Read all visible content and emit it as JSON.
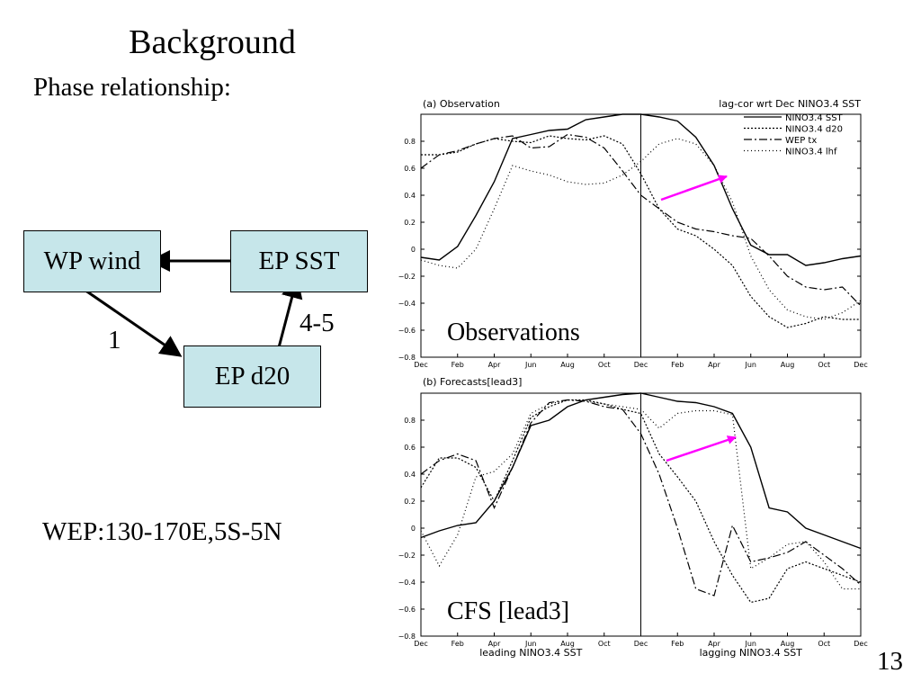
{
  "slide": {
    "title": "Background",
    "subtitle": "Phase relationship:",
    "wep_definition": "WEP:130-170E,5S-5N",
    "page_number": "13"
  },
  "diagram": {
    "boxes": {
      "wp_wind": "WP wind",
      "ep_sst": "EP SST",
      "ep_d20": "EP d20"
    },
    "arrow_labels": {
      "wp_to_d20": "1",
      "d20_to_sst": "4-5"
    },
    "box_fill": "#c6e6ea",
    "highlight_arrow_color": "#ff00ff"
  },
  "chart_data": [
    {
      "type": "line",
      "panel_label": "(a) Observation",
      "header_right": "lag-cor wrt Dec NINO3.4 SST",
      "annotation": "Observations",
      "x_ticks": [
        "Dec",
        "Feb",
        "Apr",
        "Jun",
        "Aug",
        "Oct",
        "Dec",
        "Feb",
        "Apr",
        "Jun",
        "Aug",
        "Oct",
        "Dec"
      ],
      "x_range": [
        0,
        24
      ],
      "ylim": [
        -0.8,
        1.0
      ],
      "y_ticks": [
        -0.8,
        -0.6,
        -0.4,
        -0.2,
        0,
        0.2,
        0.4,
        0.6,
        0.8
      ],
      "y_tick_labels": [
        "−0.8",
        "−0.6",
        "−0.4",
        "−0.2",
        "0",
        "0.2",
        "0.4",
        "0.6",
        "0.8"
      ],
      "reference_line_x": 12,
      "legend": "top-right",
      "series": [
        {
          "name": "NINO3.4 SST",
          "style": "solid",
          "values": [
            -0.06,
            -0.08,
            0.02,
            0.25,
            0.5,
            0.82,
            0.85,
            0.88,
            0.89,
            0.96,
            0.98,
            1.0,
            1.0,
            0.98,
            0.95,
            0.83,
            0.62,
            0.3,
            0.03,
            -0.04,
            -0.04,
            -0.12,
            -0.1,
            -0.07,
            -0.05
          ]
        },
        {
          "name": "NINO3.4 d20",
          "style": "dotted",
          "values": [
            0.7,
            0.7,
            0.72,
            0.78,
            0.82,
            0.8,
            0.79,
            0.84,
            0.82,
            0.81,
            0.84,
            0.78,
            0.56,
            0.3,
            0.15,
            0.1,
            0.0,
            -0.12,
            -0.35,
            -0.5,
            -0.58,
            -0.55,
            -0.5,
            -0.52,
            -0.52
          ]
        },
        {
          "name": "WEP tx",
          "style": "dashdot",
          "values": [
            0.6,
            0.7,
            0.73,
            0.78,
            0.82,
            0.84,
            0.75,
            0.76,
            0.85,
            0.83,
            0.75,
            0.58,
            0.4,
            0.3,
            0.2,
            0.15,
            0.13,
            0.1,
            0.08,
            -0.05,
            -0.2,
            -0.28,
            -0.3,
            -0.28,
            -0.42
          ]
        },
        {
          "name": "NINO3.4 lhf",
          "style": "fine-dotted",
          "values": [
            -0.08,
            -0.12,
            -0.14,
            0.0,
            0.3,
            0.62,
            0.58,
            0.55,
            0.5,
            0.48,
            0.49,
            0.55,
            0.65,
            0.78,
            0.82,
            0.78,
            0.62,
            0.35,
            -0.05,
            -0.3,
            -0.45,
            -0.5,
            -0.52,
            -0.47,
            -0.38
          ]
        }
      ]
    },
    {
      "type": "line",
      "panel_label": "(b) Forecasts[lead3]",
      "annotation": "CFS [lead3]",
      "x_ticks": [
        "Dec",
        "Feb",
        "Apr",
        "Jun",
        "Aug",
        "Oct",
        "Dec",
        "Feb",
        "Apr",
        "Jun",
        "Aug",
        "Oct",
        "Dec"
      ],
      "x_range": [
        0,
        24
      ],
      "ylim": [
        -0.8,
        1.0
      ],
      "y_ticks": [
        -0.8,
        -0.6,
        -0.4,
        -0.2,
        0,
        0.2,
        0.4,
        0.6,
        0.8
      ],
      "y_tick_labels": [
        "−0.8",
        "−0.6",
        "−0.4",
        "−0.2",
        "0",
        "0.2",
        "0.4",
        "0.6",
        "0.8"
      ],
      "reference_line_x": 12,
      "xlabel_left": "leading NINO3.4 SST",
      "xlabel_right": "lagging NINO3.4 SST",
      "series": [
        {
          "name": "NINO3.4 SST",
          "style": "solid",
          "values": [
            -0.07,
            -0.02,
            0.02,
            0.04,
            0.2,
            0.45,
            0.76,
            0.8,
            0.9,
            0.95,
            0.97,
            0.99,
            1.0,
            0.97,
            0.94,
            0.93,
            0.9,
            0.85,
            0.6,
            0.15,
            0.12,
            0.0,
            -0.05,
            -0.1,
            -0.15
          ]
        },
        {
          "name": "NINO3.4 d20",
          "style": "dotted",
          "values": [
            0.3,
            0.52,
            0.52,
            0.45,
            0.2,
            0.5,
            0.82,
            0.9,
            0.95,
            0.95,
            0.92,
            0.88,
            0.85,
            0.55,
            0.38,
            0.2,
            -0.1,
            -0.35,
            -0.55,
            -0.52,
            -0.3,
            -0.25,
            -0.3,
            -0.35,
            -0.4
          ]
        },
        {
          "name": "WEP tx",
          "style": "dashdot",
          "values": [
            0.4,
            0.5,
            0.55,
            0.5,
            0.15,
            0.45,
            0.78,
            0.93,
            0.95,
            0.94,
            0.9,
            0.88,
            0.7,
            0.4,
            0.0,
            -0.45,
            -0.5,
            0.02,
            -0.25,
            -0.22,
            -0.18,
            -0.1,
            -0.2,
            -0.3,
            -0.42
          ]
        },
        {
          "name": "NINO3.4 lhf",
          "style": "fine-dotted",
          "values": [
            -0.02,
            -0.28,
            -0.05,
            0.38,
            0.42,
            0.55,
            0.85,
            0.92,
            0.95,
            0.94,
            0.92,
            0.9,
            0.88,
            0.74,
            0.85,
            0.87,
            0.87,
            0.84,
            -0.3,
            -0.22,
            -0.12,
            -0.1,
            -0.25,
            -0.45,
            -0.45
          ]
        }
      ]
    }
  ]
}
